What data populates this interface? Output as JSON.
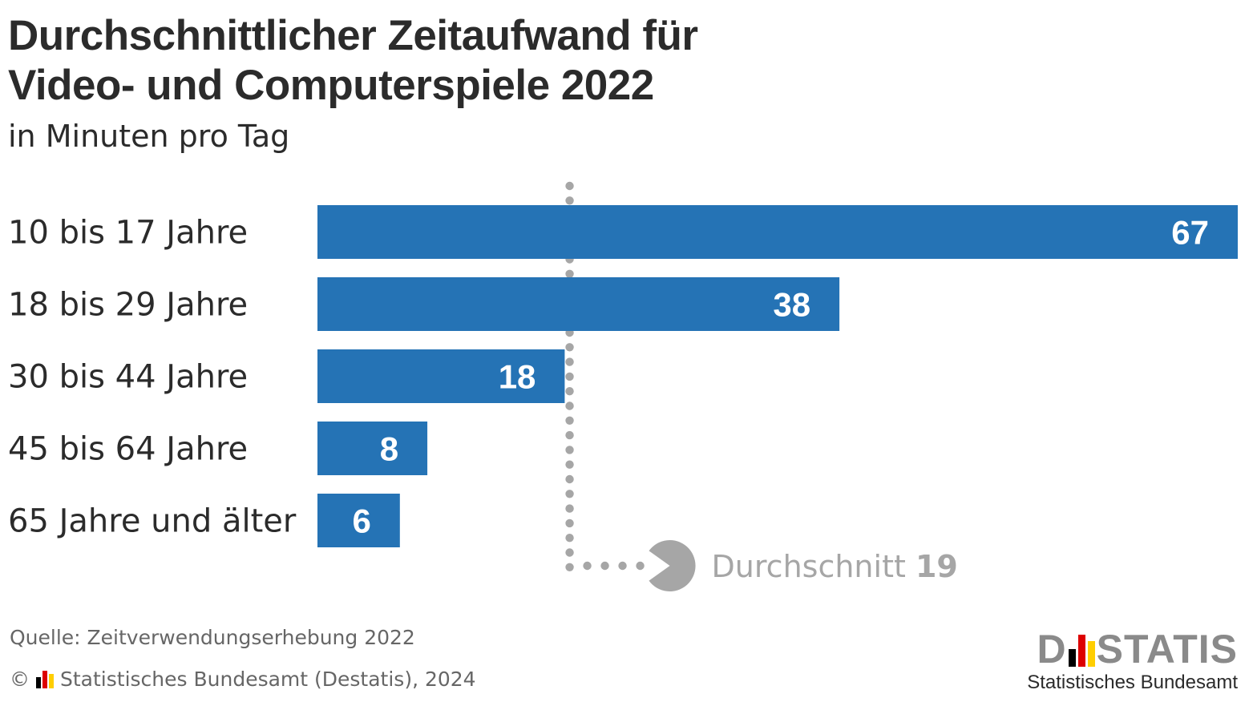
{
  "chart_data": {
    "type": "bar",
    "orientation": "horizontal",
    "title": "Durchschnittlicher Zeitaufwand für Video- und Computerspiele 2022",
    "title_lines": [
      "Durchschnittlicher Zeitaufwand für",
      "Video- und Computerspiele 2022"
    ],
    "subtitle": "in Minuten pro Tag",
    "categories": [
      "10 bis 17 Jahre",
      "18 bis 29 Jahre",
      "30 bis 44 Jahre",
      "45 bis 64 Jahre",
      "65 Jahre und älter"
    ],
    "values": [
      67,
      38,
      18,
      8,
      6
    ],
    "xlim": [
      0,
      67
    ],
    "reference_line": {
      "label": "Durchschnitt",
      "value": 19
    },
    "colors": {
      "bar": "#2573b5",
      "bar_label": "#ffffff",
      "reference": "#a6a6a6",
      "text": "#2b2b2b"
    }
  },
  "footer": {
    "source": "Quelle: Zeitverwendungserhebung 2022",
    "copyright_symbol": "©",
    "copyright": "Statistisches Bundesamt (Destatis), 2024"
  },
  "logo": {
    "word_start": "D",
    "word_end": "STATIS",
    "subtitle": "Statistisches Bundesamt",
    "flag_colors": [
      "#000000",
      "#dd0000",
      "#ffce00"
    ]
  }
}
